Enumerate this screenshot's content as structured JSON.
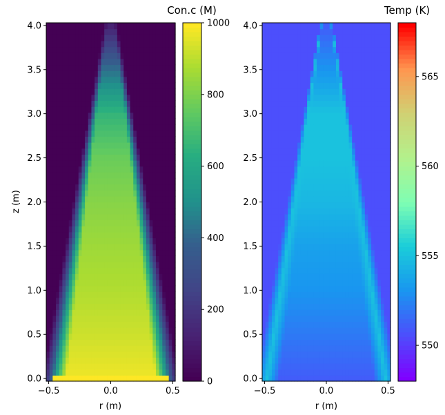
{
  "chart_data": [
    {
      "type": "heatmap",
      "title": "",
      "xlabel": "r (m)",
      "ylabel": "z (m)",
      "xlim": [
        -0.5,
        0.5
      ],
      "ylim": [
        0.0,
        4.0
      ],
      "x_ticks": [
        "−0.5",
        "0.0",
        "0.5"
      ],
      "y_ticks": [
        "0.0",
        "0.5",
        "1.0",
        "1.5",
        "2.0",
        "2.5",
        "3.0",
        "3.5",
        "4.0"
      ],
      "colormap": "viridis",
      "colorbar": {
        "label": "Con.c (M)",
        "range": [
          0,
          1000
        ],
        "ticks": [
          "0",
          "200",
          "400",
          "600",
          "800",
          "1000"
        ]
      },
      "field": {
        "description_of_shape": "cone of concentration narrowing with height",
        "base_value": 1000,
        "outside_value": 0,
        "cone_half_width_at_z0": 0.48,
        "cone_apex_z": 4.4,
        "value_at_z": [
          [
            0.0,
            980
          ],
          [
            0.5,
            930
          ],
          [
            1.0,
            890
          ],
          [
            1.5,
            860
          ],
          [
            2.0,
            820
          ],
          [
            2.5,
            770
          ],
          [
            3.0,
            660
          ],
          [
            3.5,
            420
          ],
          [
            4.0,
            120
          ]
        ]
      }
    },
    {
      "type": "heatmap",
      "title": "",
      "xlabel": "r (m)",
      "ylabel": "",
      "xlim": [
        -0.5,
        0.5
      ],
      "ylim": [
        0.0,
        4.0
      ],
      "x_ticks": [
        "−0.5",
        "0.0",
        "0.5"
      ],
      "y_ticks": [
        "0.0",
        "0.5",
        "1.0",
        "1.5",
        "2.0",
        "2.5",
        "3.0",
        "3.5",
        "4.0"
      ],
      "colormap": "rainbow",
      "colorbar": {
        "label": "Temp (K)",
        "range": [
          548,
          568
        ],
        "ticks": [
          "550",
          "555",
          "560",
          "565"
        ]
      },
      "field": {
        "background_value": 550.5,
        "edge_value": 555,
        "core_value_at_z": [
          [
            0.0,
            551
          ],
          [
            0.5,
            552
          ],
          [
            1.0,
            553
          ],
          [
            1.5,
            553.5
          ],
          [
            2.0,
            554.5
          ],
          [
            2.5,
            555
          ],
          [
            3.0,
            555
          ],
          [
            3.5,
            553
          ],
          [
            4.0,
            551
          ]
        ]
      }
    }
  ]
}
